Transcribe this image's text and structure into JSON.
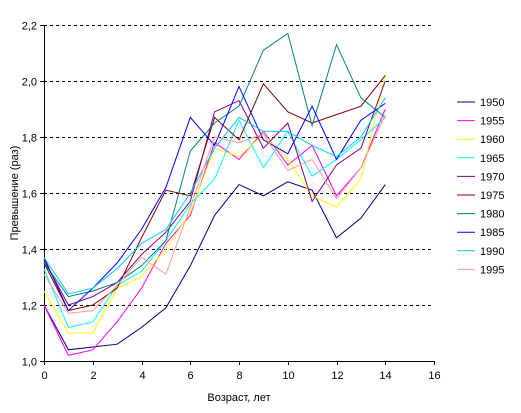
{
  "chart_data": {
    "type": "line",
    "xlabel": "Возраст, лет",
    "ylabel": "Превышение (раз)",
    "xlim": [
      0,
      16
    ],
    "ylim": [
      1.0,
      2.2
    ],
    "xticks": [
      "0",
      "2",
      "4",
      "6",
      "8",
      "10",
      "12",
      "14",
      "16"
    ],
    "yticks": [
      "1,0",
      "1,2",
      "1,4",
      "1,6",
      "1,8",
      "2,0",
      "2,2"
    ],
    "grid": "horizontal dashed",
    "legend": "right",
    "x": [
      0,
      1,
      2,
      3,
      4,
      5,
      6,
      7,
      8,
      9,
      10,
      11,
      12,
      13,
      14
    ],
    "series": [
      {
        "name": "1950",
        "color": "#000080",
        "values": [
          1.2,
          1.04,
          1.05,
          1.06,
          1.12,
          1.19,
          1.34,
          1.52,
          1.63,
          1.59,
          1.64,
          1.61,
          1.44,
          1.51,
          1.63
        ]
      },
      {
        "name": "1955",
        "color": "#ff00ff",
        "values": [
          1.2,
          1.02,
          1.04,
          1.14,
          1.26,
          1.42,
          1.52,
          1.78,
          1.72,
          1.82,
          1.7,
          1.77,
          1.59,
          1.69,
          1.9
        ]
      },
      {
        "name": "1960",
        "color": "#ffff00",
        "values": [
          1.25,
          1.1,
          1.1,
          1.26,
          1.3,
          1.4,
          1.53,
          1.76,
          1.73,
          1.81,
          1.72,
          1.59,
          1.55,
          1.65,
          2.02
        ]
      },
      {
        "name": "1965",
        "color": "#00ffff",
        "values": [
          1.33,
          1.12,
          1.14,
          1.27,
          1.32,
          1.43,
          1.56,
          1.65,
          1.86,
          1.69,
          1.82,
          1.66,
          1.72,
          1.79,
          1.87
        ]
      },
      {
        "name": "1970",
        "color": "#800080",
        "values": [
          1.36,
          1.2,
          1.23,
          1.28,
          1.38,
          1.46,
          1.57,
          1.89,
          1.93,
          1.76,
          1.85,
          1.57,
          1.7,
          1.76,
          2.0
        ]
      },
      {
        "name": "1975",
        "color": "#800000",
        "values": [
          1.35,
          1.18,
          1.2,
          1.26,
          1.44,
          1.61,
          1.59,
          1.87,
          1.79,
          1.99,
          1.89,
          1.85,
          1.88,
          1.91,
          2.02
        ]
      },
      {
        "name": "1980",
        "color": "#008080",
        "values": [
          1.35,
          1.23,
          1.25,
          1.28,
          1.34,
          1.43,
          1.75,
          1.85,
          1.91,
          2.11,
          2.17,
          1.84,
          2.13,
          1.94,
          1.87
        ]
      },
      {
        "name": "1985",
        "color": "#0000ff",
        "values": [
          1.37,
          1.18,
          1.26,
          1.35,
          1.47,
          1.62,
          1.87,
          1.77,
          1.98,
          1.79,
          1.74,
          1.91,
          1.72,
          1.86,
          1.92
        ]
      },
      {
        "name": "1990",
        "color": "#00ccff",
        "values": [
          1.37,
          1.24,
          1.26,
          1.33,
          1.42,
          1.47,
          1.6,
          1.76,
          1.87,
          1.82,
          1.82,
          1.77,
          1.73,
          1.8,
          1.94
        ]
      },
      {
        "name": "1995",
        "color": "#ff9999",
        "values": [
          1.31,
          1.17,
          1.18,
          1.27,
          1.37,
          1.31,
          1.55,
          1.8,
          1.78,
          1.81,
          1.68,
          1.72,
          1.58,
          1.69,
          1.88
        ]
      }
    ]
  }
}
